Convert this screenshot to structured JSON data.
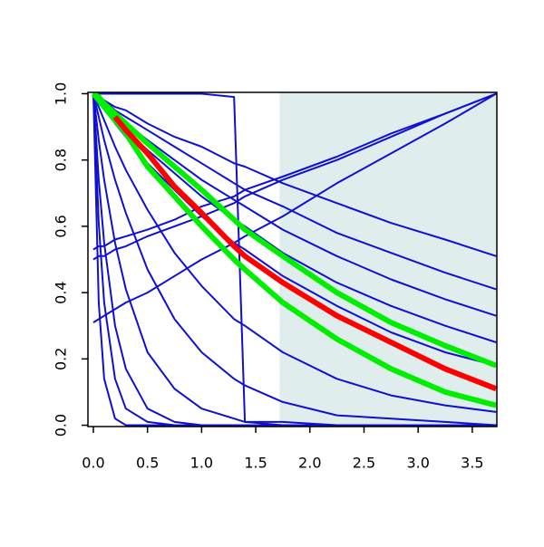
{
  "chart_data": {
    "type": "line",
    "x": [
      0,
      0.05,
      0.1,
      0.2,
      0.3,
      0.5,
      0.75,
      1,
      1.3,
      1.4,
      1.75,
      2.25,
      2.75,
      3.25,
      3.72
    ],
    "xlim": [
      -0.05,
      3.727
    ],
    "ylim": [
      -0.004,
      1.004
    ],
    "xticks": [
      {
        "value": 0,
        "label": "0.0"
      },
      0.5,
      {
        "value": 1,
        "label": "1.0"
      },
      1.5,
      {
        "value": 2,
        "label": "2.0"
      },
      2.5,
      {
        "value": 3,
        "label": "3.0"
      },
      3.5
    ],
    "yticks": [
      {
        "value": 0,
        "label": "0.0"
      },
      0.2,
      0.4,
      0.6,
      0.8,
      {
        "value": 1,
        "label": "1.0"
      }
    ],
    "shade_from": 1.72,
    "shade_color": "#e0eded",
    "series": [
      {
        "color": "#1010d0",
        "width": 2,
        "values": [
          1,
          0.99,
          0.98,
          0.96,
          0.95,
          0.91,
          0.87,
          0.84,
          0.79,
          0.78,
          0.73,
          0.67,
          0.61,
          0.56,
          0.51
        ]
      },
      {
        "color": "#1010d0",
        "width": 2,
        "values": [
          1,
          0.99,
          0.98,
          0.95,
          0.93,
          0.89,
          0.84,
          0.79,
          0.73,
          0.71,
          0.66,
          0.58,
          0.52,
          0.46,
          0.41
        ]
      },
      {
        "color": "#1010d0",
        "width": 2,
        "values": [
          1,
          0.99,
          0.97,
          0.94,
          0.91,
          0.86,
          0.8,
          0.74,
          0.68,
          0.66,
          0.59,
          0.51,
          0.44,
          0.38,
          0.33
        ]
      },
      {
        "color": "#1010d0",
        "width": 2,
        "values": [
          1,
          0.98,
          0.96,
          0.93,
          0.89,
          0.83,
          0.76,
          0.69,
          0.62,
          0.6,
          0.52,
          0.43,
          0.36,
          0.3,
          0.25
        ]
      },
      {
        "color": "#1010d0",
        "width": 2,
        "values": [
          1,
          0.98,
          0.96,
          0.91,
          0.87,
          0.79,
          0.71,
          0.63,
          0.55,
          0.53,
          0.45,
          0.36,
          0.28,
          0.22,
          0.18
        ]
      },
      {
        "color": "#1010d0",
        "width": 2,
        "values": [
          1,
          0.96,
          0.92,
          0.84,
          0.77,
          0.65,
          0.52,
          0.42,
          0.32,
          0.3,
          0.22,
          0.14,
          0.09,
          0.06,
          0.04
        ]
      },
      {
        "color": "#1010d0",
        "width": 2,
        "values": [
          1,
          0.93,
          0.86,
          0.74,
          0.64,
          0.47,
          0.32,
          0.22,
          0.14,
          0.12,
          0.07,
          0.03,
          0.02,
          0.01,
          0
        ]
      },
      {
        "color": "#1010d0",
        "width": 2,
        "values": [
          1,
          0.86,
          0.74,
          0.55,
          0.41,
          0.22,
          0.11,
          0.05,
          0.02,
          0.01,
          0.01,
          0,
          0,
          0,
          0
        ]
      },
      {
        "color": "#1010d0",
        "width": 2,
        "values": [
          1,
          0.74,
          0.55,
          0.3,
          0.17,
          0.05,
          0.01,
          0,
          0,
          0,
          0,
          0,
          0,
          0,
          0
        ]
      },
      {
        "color": "#1010d0",
        "width": 2,
        "values": [
          1,
          0.61,
          0.37,
          0.14,
          0.05,
          0.01,
          0,
          0,
          0,
          0,
          0,
          0,
          0,
          0,
          0
        ]
      },
      {
        "color": "#1010d0",
        "width": 2,
        "values": [
          1,
          0.37,
          0.14,
          0.02,
          0,
          0,
          0,
          0,
          0,
          0,
          0,
          0,
          0,
          0,
          0
        ]
      },
      {
        "color": "#1010d0",
        "width": 2,
        "values": [
          0.53,
          0.54,
          0.54,
          0.56,
          0.57,
          0.59,
          0.62,
          0.66,
          0.69,
          0.71,
          0.75,
          0.81,
          0.88,
          0.94,
          1
        ]
      },
      {
        "color": "#1010d0",
        "width": 2,
        "values": [
          0.5,
          0.51,
          0.51,
          0.53,
          0.54,
          0.57,
          0.6,
          0.63,
          0.67,
          0.69,
          0.74,
          0.8,
          0.87,
          0.94,
          1
        ]
      },
      {
        "color": "#1010d0",
        "width": 2,
        "values": [
          0.31,
          0.32,
          0.33,
          0.35,
          0.37,
          0.4,
          0.45,
          0.5,
          0.55,
          0.57,
          0.63,
          0.73,
          0.82,
          0.91,
          1
        ]
      },
      {
        "color": "#1010d0",
        "width": 2,
        "values": [
          1,
          1,
          1,
          1,
          1,
          1,
          1,
          1,
          0.99,
          0.01,
          0,
          0,
          0,
          0,
          0
        ]
      },
      {
        "color": "#00ee00",
        "width": 6,
        "values": [
          1,
          0.99,
          0.97,
          0.94,
          0.91,
          0.85,
          0.78,
          0.71,
          0.62,
          0.59,
          0.51,
          0.4,
          0.31,
          0.24,
          0.18
        ]
      },
      {
        "color": "#00ee00",
        "width": 6,
        "values": [
          1,
          0.98,
          0.96,
          0.92,
          0.88,
          0.78,
          0.69,
          0.6,
          0.5,
          0.47,
          0.37,
          0.26,
          0.17,
          0.1,
          0.06
        ]
      },
      {
        "color": "#ff0000",
        "width": 6,
        "values": [
          null,
          null,
          null,
          0.93,
          0.89,
          0.82,
          0.72,
          0.64,
          0.54,
          0.51,
          0.43,
          0.33,
          0.25,
          0.17,
          0.11
        ]
      }
    ]
  }
}
